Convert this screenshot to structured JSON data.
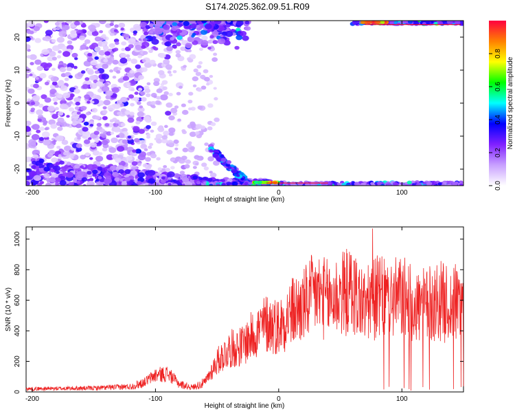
{
  "title": "S174.2025.362.09.51.R09",
  "chart_data": [
    {
      "type": "heatmap",
      "xlabel": "Height of straight line (km)",
      "ylabel": "Frequency (Hz)",
      "xlim": [
        -205,
        150
      ],
      "ylim": [
        -25,
        25
      ],
      "xticks": [
        -200,
        -100,
        0,
        100
      ],
      "yticks": [
        -20,
        -10,
        0,
        10,
        20
      ],
      "colorbar": {
        "label": "Normalized spectral amplitude",
        "range": [
          0.0,
          1.0
        ],
        "ticks": [
          0.0,
          0.2,
          0.4,
          0.6,
          0.8
        ],
        "colors": [
          "#ffffff",
          "#c8a0ff",
          "#8020ff",
          "#0000ff",
          "#00ffff",
          "#00ff00",
          "#ffff00",
          "#ff8000",
          "#ff0040"
        ]
      },
      "annotations": [
        {
          "feature": "lower-band",
          "x_range": [
            -60,
            150
          ],
          "frequency": -24
        },
        {
          "feature": "upper-band",
          "x_range": [
            -110,
            -25
          ],
          "frequency": 24
        },
        {
          "feature": "upper-band",
          "x_range": [
            60,
            150
          ],
          "frequency": 24
        }
      ],
      "trace_color": "#ff0000"
    },
    {
      "type": "line",
      "xlabel": "Height of straight line (km)",
      "ylabel": "SNR (10 * v/v)",
      "xlim": [
        -205,
        150
      ],
      "ylim": [
        0,
        1080
      ],
      "xticks": [
        -200,
        -100,
        0,
        100
      ],
      "yticks": [
        0,
        200,
        400,
        600,
        800,
        1000
      ],
      "color": "#ee2222",
      "envelope": {
        "x": [
          -205,
          -150,
          -120,
          -110,
          -100,
          -90,
          -80,
          -70,
          -60,
          -50,
          -40,
          -30,
          -20,
          -10,
          0,
          10,
          20,
          30,
          40,
          50,
          60,
          70,
          80,
          90,
          100,
          110,
          120,
          130,
          140,
          150
        ],
        "y": [
          20,
          25,
          35,
          60,
          110,
          120,
          50,
          30,
          60,
          200,
          280,
          300,
          380,
          450,
          430,
          520,
          560,
          650,
          600,
          640,
          660,
          560,
          620,
          600,
          620,
          560,
          560,
          600,
          560,
          620
        ]
      }
    }
  ]
}
